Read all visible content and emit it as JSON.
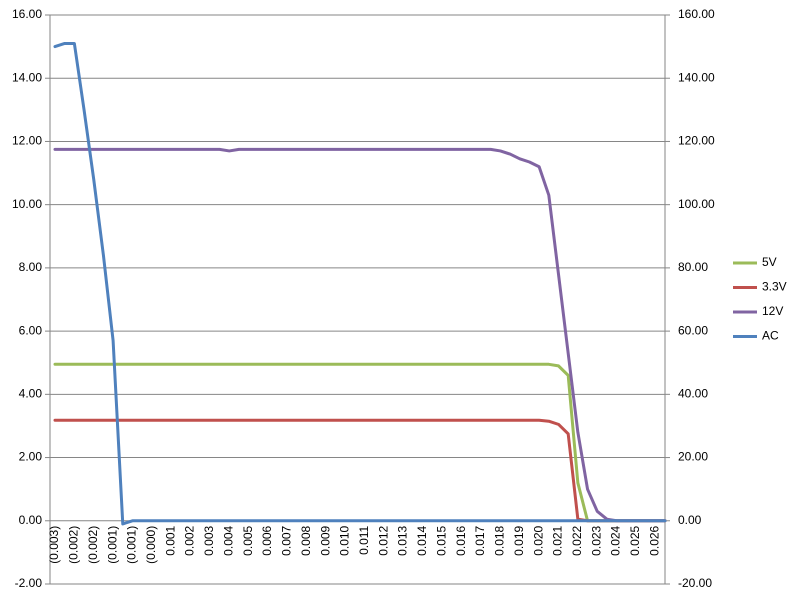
{
  "chart_data": {
    "type": "line",
    "categories": [
      "(0.003)",
      null,
      "(0.002)",
      null,
      "(0.002)",
      null,
      "(0.001)",
      null,
      "(0.001)",
      null,
      "(0.000)",
      null,
      "0.001",
      null,
      "0.002",
      null,
      "0.003",
      null,
      "0.004",
      null,
      "0.005",
      null,
      "0.006",
      null,
      "0.007",
      null,
      "0.008",
      null,
      "0.009",
      null,
      "0.010",
      null,
      "0.011",
      null,
      "0.012",
      null,
      "0.013",
      null,
      "0.014",
      null,
      "0.015",
      null,
      "0.016",
      null,
      "0.017",
      null,
      "0.018",
      null,
      "0.019",
      null,
      "0.020",
      null,
      "0.021",
      null,
      "0.022",
      null,
      "0.023",
      null,
      "0.024",
      null,
      "0.025",
      null,
      "0.026",
      null
    ],
    "series": [
      {
        "name": "5V",
        "color": "#9bbb59",
        "values": [
          4.95,
          4.95,
          4.95,
          4.95,
          4.95,
          4.95,
          4.95,
          4.95,
          4.95,
          4.95,
          4.95,
          4.95,
          4.95,
          4.95,
          4.95,
          4.95,
          4.95,
          4.95,
          4.95,
          4.95,
          4.95,
          4.95,
          4.95,
          4.95,
          4.95,
          4.95,
          4.95,
          4.95,
          4.95,
          4.95,
          4.95,
          4.95,
          4.95,
          4.95,
          4.95,
          4.95,
          4.95,
          4.95,
          4.95,
          4.95,
          4.95,
          4.95,
          4.95,
          4.95,
          4.95,
          4.95,
          4.95,
          4.95,
          4.95,
          4.95,
          4.95,
          4.95,
          4.9,
          4.6,
          1.2,
          0,
          0,
          0,
          0,
          0,
          0,
          0,
          0,
          0
        ]
      },
      {
        "name": "3.3V",
        "color": "#c0504d",
        "values": [
          3.18,
          3.18,
          3.18,
          3.18,
          3.18,
          3.18,
          3.18,
          3.18,
          3.18,
          3.18,
          3.18,
          3.18,
          3.18,
          3.18,
          3.18,
          3.18,
          3.18,
          3.18,
          3.18,
          3.18,
          3.18,
          3.18,
          3.18,
          3.18,
          3.18,
          3.18,
          3.18,
          3.18,
          3.18,
          3.18,
          3.18,
          3.18,
          3.18,
          3.18,
          3.18,
          3.18,
          3.18,
          3.18,
          3.18,
          3.18,
          3.18,
          3.18,
          3.18,
          3.18,
          3.18,
          3.18,
          3.18,
          3.18,
          3.18,
          3.18,
          3.18,
          3.15,
          3.05,
          2.75,
          0.05,
          0,
          0,
          0,
          0,
          0,
          0,
          0,
          0,
          0
        ]
      },
      {
        "name": "12V",
        "color": "#8064a2",
        "values": [
          11.75,
          11.75,
          11.75,
          11.75,
          11.75,
          11.75,
          11.75,
          11.75,
          11.75,
          11.75,
          11.75,
          11.75,
          11.75,
          11.75,
          11.75,
          11.75,
          11.75,
          11.75,
          11.7,
          11.75,
          11.75,
          11.75,
          11.75,
          11.75,
          11.75,
          11.75,
          11.75,
          11.75,
          11.75,
          11.75,
          11.75,
          11.75,
          11.75,
          11.75,
          11.75,
          11.75,
          11.75,
          11.75,
          11.75,
          11.75,
          11.75,
          11.75,
          11.75,
          11.75,
          11.75,
          11.75,
          11.7,
          11.6,
          11.45,
          11.35,
          11.2,
          10.3,
          7.8,
          5.3,
          2.8,
          1.0,
          0.3,
          0.05,
          0,
          0,
          0,
          0,
          0,
          0
        ]
      },
      {
        "name": "AC",
        "color": "#4f81bd",
        "axis": "y2",
        "values": [
          150,
          151,
          151,
          130,
          108,
          84,
          57,
          -1,
          0,
          0,
          0,
          0,
          0,
          0,
          0,
          0,
          0,
          0,
          0,
          0,
          0,
          0,
          0,
          0,
          0,
          0,
          0,
          0,
          0,
          0,
          0,
          0,
          0,
          0,
          0,
          0,
          0,
          0,
          0,
          0,
          0,
          0,
          0,
          0,
          0,
          0,
          0,
          0,
          0,
          0,
          0,
          0,
          0,
          0,
          0,
          0,
          0,
          0,
          0,
          0,
          0,
          0,
          0,
          0
        ]
      }
    ],
    "ylim": [
      -2,
      16
    ],
    "yticks": [
      {
        "value": -2,
        "label": "-2.00"
      },
      {
        "value": 0,
        "label": "0.00"
      },
      {
        "value": 2,
        "label": "2.00"
      },
      {
        "value": 4,
        "label": "4.00"
      },
      {
        "value": 6,
        "label": "6.00"
      },
      {
        "value": 8,
        "label": "8.00"
      },
      {
        "value": 10,
        "label": "10.00"
      },
      {
        "value": 12,
        "label": "12.00"
      },
      {
        "value": 14,
        "label": "14.00"
      },
      {
        "value": 16,
        "label": "16.00"
      }
    ],
    "y2lim": [
      -20,
      160
    ],
    "y2ticks": [
      {
        "value": -20,
        "label": "-20.00"
      },
      {
        "value": 0,
        "label": "0.00"
      },
      {
        "value": 20,
        "label": "20.00"
      },
      {
        "value": 40,
        "label": "40.00"
      },
      {
        "value": 60,
        "label": "60.00"
      },
      {
        "value": 80,
        "label": "80.00"
      },
      {
        "value": 100,
        "label": "100.00"
      },
      {
        "value": 120,
        "label": "120.00"
      },
      {
        "value": 140,
        "label": "140.00"
      },
      {
        "value": 160,
        "label": "160.00"
      }
    ],
    "grid": true,
    "legend": "right"
  }
}
